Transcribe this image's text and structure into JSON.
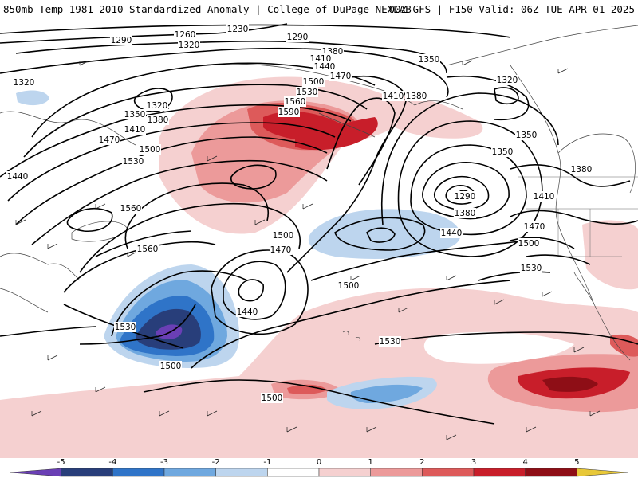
{
  "header": {
    "title_left": "850mb Temp 1981-2010 Standardized Anomaly | College of DuPage NEXLAB",
    "title_right": "00Z GFS | F150 Valid: 06Z TUE APR 01 2025"
  },
  "map": {
    "contour_labels": [
      "1230",
      "1260",
      "1290",
      "1290",
      "1320",
      "1320",
      "1320",
      "1350",
      "1350",
      "1380",
      "1380",
      "1410",
      "1410",
      "1440",
      "1470",
      "1500",
      "1530",
      "1560",
      "1590",
      "1320",
      "1350",
      "1380",
      "1410",
      "1470",
      "1500",
      "1530",
      "1440",
      "1560",
      "1560",
      "1290",
      "1380",
      "1440",
      "1350",
      "1380",
      "1410",
      "1470",
      "1500",
      "1530",
      "1500",
      "1470",
      "1440",
      "1500",
      "1530",
      "1500",
      "1530",
      "1500"
    ],
    "colors": {
      "neg5": "#6a3fb5",
      "neg4": "#283e7a",
      "neg3": "#2f74c8",
      "neg2": "#6fa8df",
      "neg1": "#bdd5ee",
      "zero": "#ffffff",
      "pos1": "#f5d0d0",
      "pos2": "#ec9a9a",
      "pos3": "#dd5a5a",
      "pos4": "#c81e2a",
      "pos5": "#8e0e16",
      "pos6": "#e8c838"
    }
  },
  "colorbar": {
    "ticks": [
      "-5",
      "-4",
      "-3",
      "-2",
      "-1",
      "0",
      "1",
      "2",
      "3",
      "4",
      "5"
    ],
    "colors": [
      "#6a3fb5",
      "#283e7a",
      "#2f74c8",
      "#6fa8df",
      "#bdd5ee",
      "#ffffff",
      "#f5d0d0",
      "#ec9a9a",
      "#dd5a5a",
      "#c81e2a",
      "#8e0e16",
      "#e8c838"
    ]
  }
}
